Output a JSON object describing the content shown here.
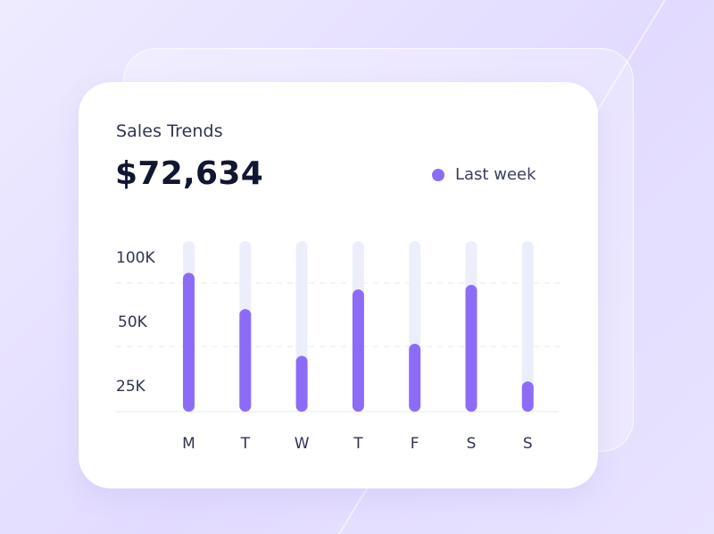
{
  "card": {
    "title": "Sales Trends",
    "total": "$72,634"
  },
  "colors": {
    "bar": "#8c6cf7",
    "track": "#eceefc",
    "grid": "#e6e8f2",
    "axis_text": "#2f3550"
  },
  "chart_data": {
    "type": "bar",
    "categories": [
      "M",
      "T",
      "W",
      "T",
      "F",
      "S",
      "S"
    ],
    "series": [
      {
        "name": "Last week",
        "values": [
          92,
          68,
          37,
          81,
          45,
          84,
          20
        ]
      }
    ],
    "y_ticks": [
      "100K",
      "50K",
      "25K"
    ],
    "ylim": [
      0,
      100
    ],
    "grid": true,
    "legend": "top-right"
  }
}
